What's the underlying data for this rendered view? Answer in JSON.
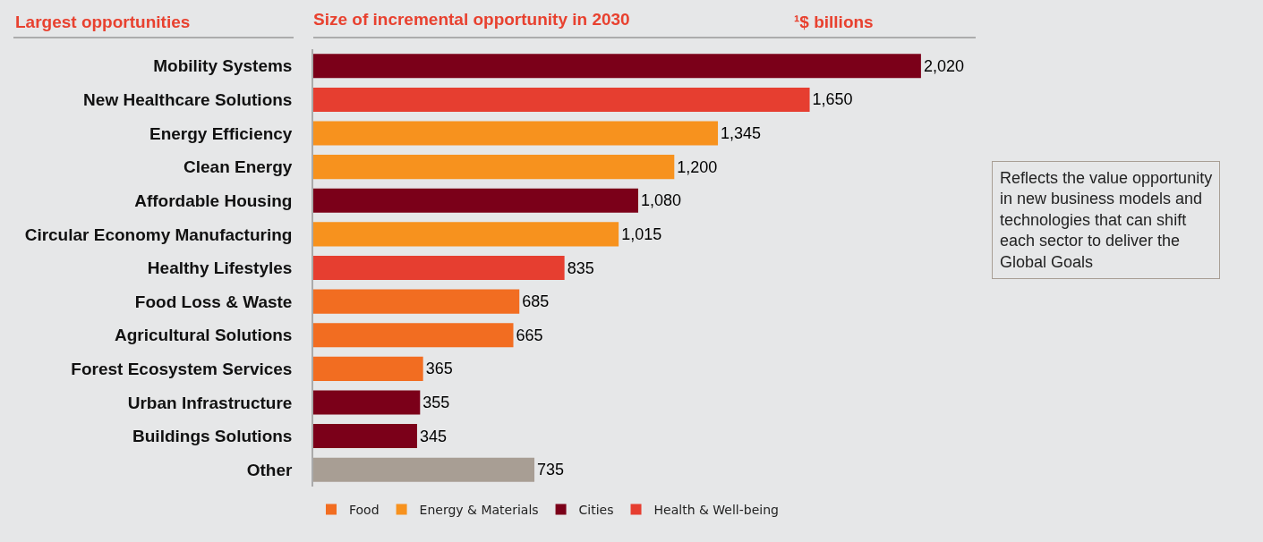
{
  "chart_data": {
    "type": "bar",
    "orientation": "horizontal",
    "title": "Size of incremental opportunity in 2030",
    "subtitle": "¹$ billions",
    "ylabel": "Largest opportunities",
    "categories": [
      "Mobility Systems",
      "New Healthcare Solutions",
      "Energy Efficiency",
      "Clean Energy",
      "Affordable Housing",
      "Circular Economy Manufacturing",
      "Healthy Lifestyles",
      "Food Loss & Waste",
      "Agricultural Solutions",
      "Forest Ecosystem Services",
      "Urban Infrastructure",
      "Buildings Solutions",
      "Other"
    ],
    "series": [
      {
        "name": "Food",
        "color": "#f26d21",
        "values": [
          null,
          null,
          null,
          null,
          null,
          null,
          null,
          685,
          665,
          365,
          null,
          null,
          null
        ],
        "value_labels": [
          null,
          null,
          null,
          null,
          null,
          null,
          null,
          "685",
          "665",
          "365",
          null,
          null,
          null
        ]
      },
      {
        "name": "Energy & Materials",
        "color": "#f7921e",
        "values": [
          null,
          null,
          1345,
          1200,
          null,
          1015,
          null,
          null,
          null,
          null,
          null,
          null,
          null
        ],
        "value_labels": [
          null,
          null,
          "1,345",
          "1,200",
          null,
          "1,015",
          null,
          null,
          null,
          null,
          null,
          null,
          null
        ]
      },
      {
        "name": "Cities",
        "color": "#7b0019",
        "values": [
          2020,
          null,
          null,
          null,
          1080,
          null,
          null,
          null,
          null,
          null,
          355,
          345,
          null
        ],
        "value_labels": [
          "2,020",
          null,
          null,
          null,
          "1,080",
          null,
          null,
          null,
          null,
          null,
          "355",
          "345",
          null
        ]
      },
      {
        "name": "Health & Well-being",
        "color": "#e63e30",
        "values": [
          null,
          1650,
          null,
          null,
          null,
          null,
          835,
          null,
          null,
          null,
          null,
          null,
          null
        ],
        "value_labels": [
          null,
          "1,650",
          null,
          null,
          null,
          null,
          "835",
          null,
          null,
          null,
          null,
          null,
          null
        ]
      },
      {
        "color": "#a89e94",
        "values": [
          null,
          null,
          null,
          null,
          null,
          null,
          null,
          null,
          null,
          null,
          null,
          null,
          735
        ],
        "value_labels": [
          null,
          null,
          null,
          null,
          null,
          null,
          null,
          null,
          null,
          null,
          null,
          null,
          "735"
        ]
      }
    ],
    "legend": "bottom",
    "annotations": [
      "Reflects the value opportunity in new business models and technologies that can shift each sector to deliver the Global Goals"
    ]
  }
}
